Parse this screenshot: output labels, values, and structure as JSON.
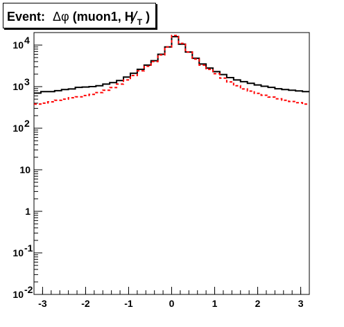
{
  "chart_data": {
    "type": "line",
    "title": "Event: Δφ(muon1, H̸T)",
    "title_parts": {
      "prefix": "Event:",
      "symbol": "Δφ",
      "args": "(muon1, ",
      "met": "H",
      "met_sub": "T",
      "close": ")"
    },
    "xlabel": "",
    "ylabel": "",
    "xlim": [
      -3.2,
      3.2
    ],
    "ylim": [
      0.01,
      20000
    ],
    "y_scale": "log",
    "grid": false,
    "legend": "none",
    "x_ticks": [
      "-3",
      "-2",
      "-1",
      "0",
      "1",
      "2",
      "3"
    ],
    "y_ticks": [
      {
        "value": 0.01,
        "base": "10",
        "exp": "-2"
      },
      {
        "value": 0.1,
        "base": "10",
        "exp": "-1"
      },
      {
        "value": 1,
        "base": "1",
        "exp": ""
      },
      {
        "value": 10,
        "base": "10",
        "exp": ""
      },
      {
        "value": 100,
        "base": "10",
        "exp": "2"
      },
      {
        "value": 1000,
        "base": "10",
        "exp": "3"
      },
      {
        "value": 10000,
        "base": "10",
        "exp": "4"
      }
    ],
    "bin_edges": [
      -3.2,
      -3.0,
      3.0,
      3.2
    ],
    "n_bins": 40,
    "x_min": -3.2,
    "x_max": 3.2,
    "series": [
      {
        "color": "#000000",
        "style": "solid",
        "values": [
          700,
          760,
          760,
          800,
          850,
          880,
          960,
          980,
          1000,
          1050,
          1150,
          1250,
          1400,
          1700,
          2100,
          2600,
          3300,
          4200,
          6000,
          9000,
          16000,
          10500,
          6800,
          4800,
          3500,
          2800,
          2300,
          1950,
          1650,
          1450,
          1320,
          1200,
          1100,
          1020,
          960,
          890,
          850,
          820,
          790,
          760
        ]
      },
      {
        "color": "#ff0000",
        "style": "dashed",
        "values": [
          380,
          400,
          430,
          470,
          500,
          540,
          570,
          610,
          650,
          720,
          820,
          950,
          1150,
          1450,
          1850,
          2400,
          3100,
          4000,
          5800,
          9000,
          17000,
          11000,
          6800,
          4600,
          3300,
          2600,
          2050,
          1600,
          1300,
          1050,
          880,
          780,
          690,
          620,
          560,
          510,
          470,
          440,
          410,
          380
        ]
      }
    ]
  }
}
